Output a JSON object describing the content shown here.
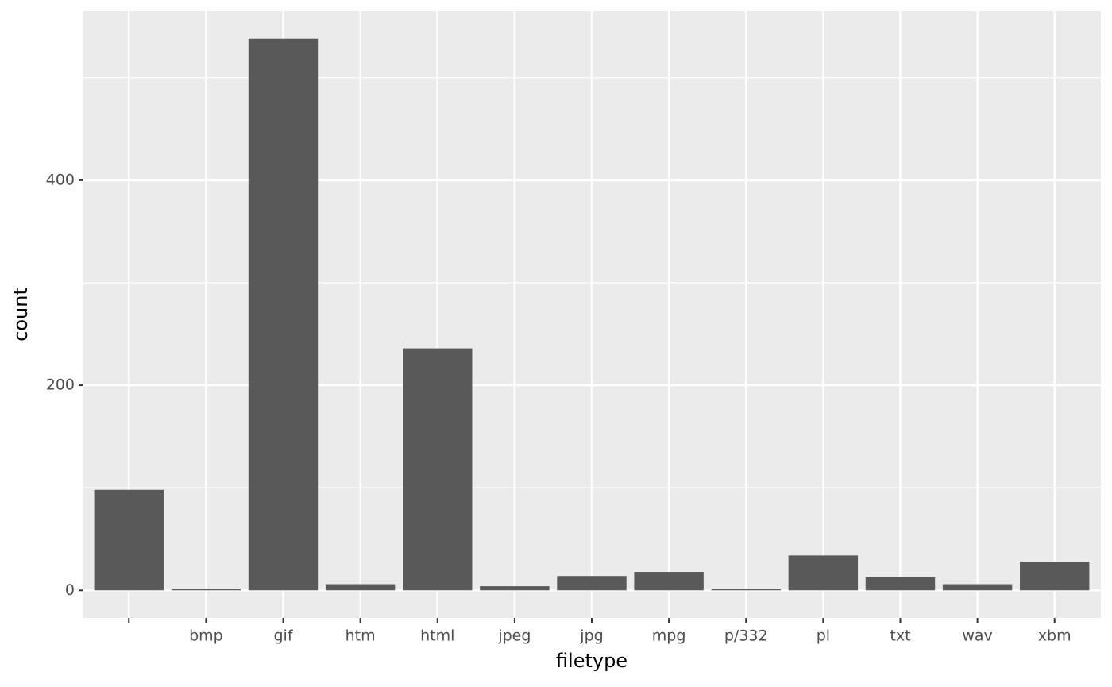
{
  "chart_data": {
    "type": "bar",
    "x_label": "filetype",
    "y_label": "count",
    "categories": [
      null,
      "bmp",
      "gif",
      "htm",
      "html",
      "jpeg",
      "jpg",
      "mpg",
      "p/332",
      "pl",
      "txt",
      "wav",
      "xbm"
    ],
    "values": [
      98,
      1,
      538,
      6,
      236,
      4,
      14,
      18,
      1,
      34,
      13,
      6,
      28
    ],
    "color": "#595959",
    "ylim": [
      -26.9,
      564.9
    ],
    "yticks": [
      0,
      200,
      400
    ],
    "y_minor_grid": [
      100,
      300,
      500
    ],
    "grid": true
  }
}
